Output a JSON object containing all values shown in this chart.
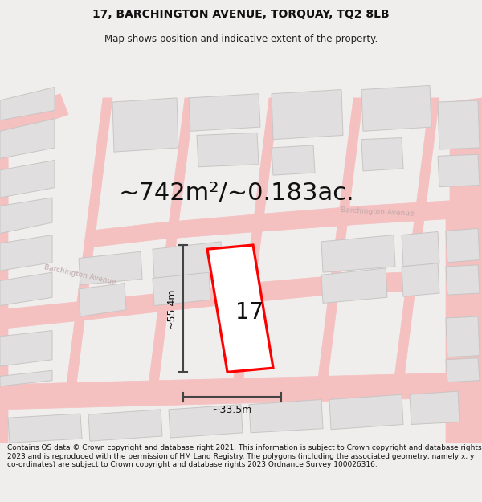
{
  "title": "17, BARCHINGTON AVENUE, TORQUAY, TQ2 8LB",
  "subtitle": "Map shows position and indicative extent of the property.",
  "area_text": "~742m²/~0.183ac.",
  "property_number": "17",
  "dim_width": "~33.5m",
  "dim_height": "~55.4m",
  "footer": "Contains OS data © Crown copyright and database right 2021. This information is subject to Crown copyright and database rights 2023 and is reproduced with the permission of HM Land Registry. The polygons (including the associated geometry, namely x, y co-ordinates) are subject to Crown copyright and database rights 2023 Ordnance Survey 100026316.",
  "bg_color": "#f0eded",
  "map_bg": "#ffffff",
  "road_color": "#f5c0c0",
  "road_edge": "#f0a0a0",
  "property_color": "#ff0000",
  "building_color": "#e0dede",
  "building_edge": "#c8c5c5",
  "dim_color": "#444444",
  "street_color": "#bbaaaa",
  "title_fontsize": 10,
  "subtitle_fontsize": 8.5,
  "area_fontsize": 22,
  "number_fontsize": 20,
  "dim_fontsize": 9,
  "footer_fontsize": 6.5
}
